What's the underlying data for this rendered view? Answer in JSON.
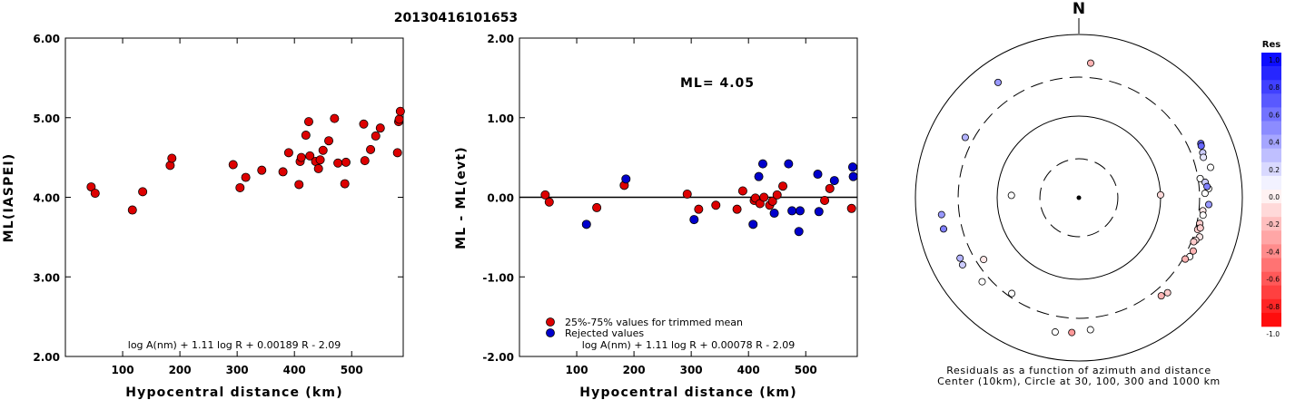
{
  "title": "20130416101653",
  "chart_data": [
    {
      "type": "scatter",
      "xlabel": "Hypocentral distance (km)",
      "ylabel": "ML(IASPEI)",
      "xticks": [
        "100",
        "200",
        "300",
        "400",
        "500"
      ],
      "yticks": [
        "2.00",
        "3.00",
        "4.00",
        "5.00",
        "6.00"
      ],
      "xlim": [
        0,
        590
      ],
      "ylim": [
        2.0,
        6.0
      ],
      "formula": "log A(nm) + 1.11 log R + 0.00189 R - 2.09",
      "series": [
        {
          "color": "#dd0000",
          "points": [
            [
              45,
              4.13
            ],
            [
              52,
              4.05
            ],
            [
              117,
              3.84
            ],
            [
              135,
              4.07
            ],
            [
              183,
              4.4
            ],
            [
              186,
              4.49
            ],
            [
              293,
              4.41
            ],
            [
              305,
              4.12
            ],
            [
              315,
              4.25
            ],
            [
              343,
              4.34
            ],
            [
              380,
              4.32
            ],
            [
              390,
              4.56
            ],
            [
              408,
              4.16
            ],
            [
              410,
              4.45
            ],
            [
              412,
              4.5
            ],
            [
              420,
              4.78
            ],
            [
              425,
              4.95
            ],
            [
              427,
              4.52
            ],
            [
              437,
              4.45
            ],
            [
              442,
              4.36
            ],
            [
              445,
              4.47
            ],
            [
              450,
              4.59
            ],
            [
              460,
              4.71
            ],
            [
              470,
              4.99
            ],
            [
              476,
              4.43
            ],
            [
              488,
              4.17
            ],
            [
              490,
              4.44
            ],
            [
              521,
              4.92
            ],
            [
              523,
              4.46
            ],
            [
              533,
              4.6
            ],
            [
              542,
              4.77
            ],
            [
              550,
              4.87
            ],
            [
              580,
              4.56
            ],
            [
              582,
              4.95
            ],
            [
              583,
              4.98
            ],
            [
              585,
              5.08
            ]
          ]
        }
      ]
    },
    {
      "type": "scatter",
      "xlabel": "Hypocentral distance (km)",
      "ylabel": "ML - ML(evt)",
      "xticks": [
        "100",
        "200",
        "300",
        "400",
        "500"
      ],
      "yticks": [
        "-2.00",
        "-1.00",
        "0.00",
        "1.00",
        "2.00"
      ],
      "xlim": [
        0,
        590
      ],
      "ylim": [
        -2.0,
        2.0
      ],
      "annotation": "ML= 4.05",
      "formula": "log A(nm) + 1.11 log R + 0.00078 R - 2.09",
      "series": [
        {
          "name": "25%-75% values for trimmed mean",
          "color": "#dd0000",
          "points": [
            [
              45,
              0.03
            ],
            [
              52,
              -0.06
            ],
            [
              135,
              -0.13
            ],
            [
              183,
              0.15
            ],
            [
              293,
              0.04
            ],
            [
              313,
              -0.15
            ],
            [
              343,
              -0.1
            ],
            [
              380,
              -0.15
            ],
            [
              390,
              0.08
            ],
            [
              410,
              -0.04
            ],
            [
              412,
              -0.01
            ],
            [
              420,
              -0.08
            ],
            [
              427,
              0.0
            ],
            [
              437,
              -0.1
            ],
            [
              442,
              -0.05
            ],
            [
              450,
              0.03
            ],
            [
              460,
              0.14
            ],
            [
              533,
              -0.04
            ],
            [
              542,
              0.11
            ],
            [
              580,
              -0.14
            ]
          ]
        },
        {
          "name": "Rejected values",
          "color": "#0000cc",
          "points": [
            [
              117,
              -0.34
            ],
            [
              186,
              0.23
            ],
            [
              305,
              -0.28
            ],
            [
              408,
              -0.34
            ],
            [
              418,
              0.26
            ],
            [
              425,
              0.42
            ],
            [
              445,
              -0.2
            ],
            [
              470,
              0.42
            ],
            [
              476,
              -0.17
            ],
            [
              488,
              -0.43
            ],
            [
              490,
              -0.17
            ],
            [
              521,
              0.29
            ],
            [
              523,
              -0.18
            ],
            [
              550,
              0.21
            ],
            [
              582,
              0.38
            ],
            [
              583,
              0.26
            ]
          ]
        }
      ]
    },
    {
      "type": "scatter",
      "north_label": "N",
      "caption_line1": "Residuals as a function of azimuth and distance",
      "caption_line2": "Center (10km), Circle at 30, 100, 300 and 1000 km",
      "colorbar_title": "Res",
      "colorbar_ticks": [
        "1.0",
        "0.8",
        "0.6",
        "0.4",
        "0.2",
        "0.0",
        "-0.2",
        "-0.4",
        "-0.6",
        "-0.8",
        "-1.0"
      ],
      "rings_km": [
        30,
        100,
        300,
        1000
      ],
      "points": [
        {
          "az": 5,
          "dist": 452,
          "res": -0.3
        },
        {
          "az": 325,
          "dist": 530,
          "res": 0.4
        },
        {
          "az": 298,
          "dist": 375,
          "res": 0.3
        },
        {
          "az": 272,
          "dist": 67,
          "res": 0.0
        },
        {
          "az": 88,
          "dist": 100,
          "res": -0.15
        },
        {
          "az": 66,
          "dist": 430,
          "res": 0.6
        },
        {
          "az": 67,
          "dist": 423,
          "res": 0.6
        },
        {
          "az": 70,
          "dist": 410,
          "res": 0.2
        },
        {
          "az": 72,
          "dist": 400,
          "res": 0.1
        },
        {
          "az": 77,
          "dist": 450,
          "res": 0.0
        },
        {
          "az": 81,
          "dist": 318,
          "res": 0.0
        },
        {
          "az": 83,
          "dist": 360,
          "res": 0.2
        },
        {
          "az": 86,
          "dist": 390,
          "res": 0.0
        },
        {
          "az": 88,
          "dist": 350,
          "res": 0.0
        },
        {
          "az": 85,
          "dist": 375,
          "res": 0.5
        },
        {
          "az": 93,
          "dist": 390,
          "res": 0.4
        },
        {
          "az": 96,
          "dist": 335,
          "res": -0.1
        },
        {
          "az": 98,
          "dist": 342,
          "res": 0.0
        },
        {
          "az": 102,
          "dist": 325,
          "res": -0.2
        },
        {
          "az": 105,
          "dist": 320,
          "res": -0.2
        },
        {
          "az": 104,
          "dist": 340,
          "res": -0.2
        },
        {
          "az": 108,
          "dist": 358,
          "res": -0.1
        },
        {
          "az": 110,
          "dist": 332,
          "res": -0.1
        },
        {
          "az": 111,
          "dist": 320,
          "res": -0.2
        },
        {
          "az": 115,
          "dist": 350,
          "res": -0.3
        },
        {
          "az": 118,
          "dist": 344,
          "res": 0.0
        },
        {
          "az": 120,
          "dist": 318,
          "res": -0.3
        },
        {
          "az": 137,
          "dist": 390,
          "res": -0.2
        },
        {
          "az": 140,
          "dist": 370,
          "res": -0.3
        },
        {
          "az": 175,
          "dist": 420,
          "res": 0.0
        },
        {
          "az": 183,
          "dist": 450,
          "res": -0.4
        },
        {
          "az": 190,
          "dist": 468,
          "res": 0.0
        },
        {
          "az": 215,
          "dist": 270,
          "res": 0.0
        },
        {
          "az": 229,
          "dist": 370,
          "res": 0.0
        },
        {
          "az": 237,
          "dist": 245,
          "res": -0.1
        },
        {
          "az": 240,
          "dist": 440,
          "res": 0.2
        },
        {
          "az": 243,
          "dist": 428,
          "res": 0.3
        },
        {
          "az": 257,
          "dist": 500,
          "res": 0.5
        },
        {
          "az": 263,
          "dist": 493,
          "res": 0.4
        }
      ]
    }
  ]
}
